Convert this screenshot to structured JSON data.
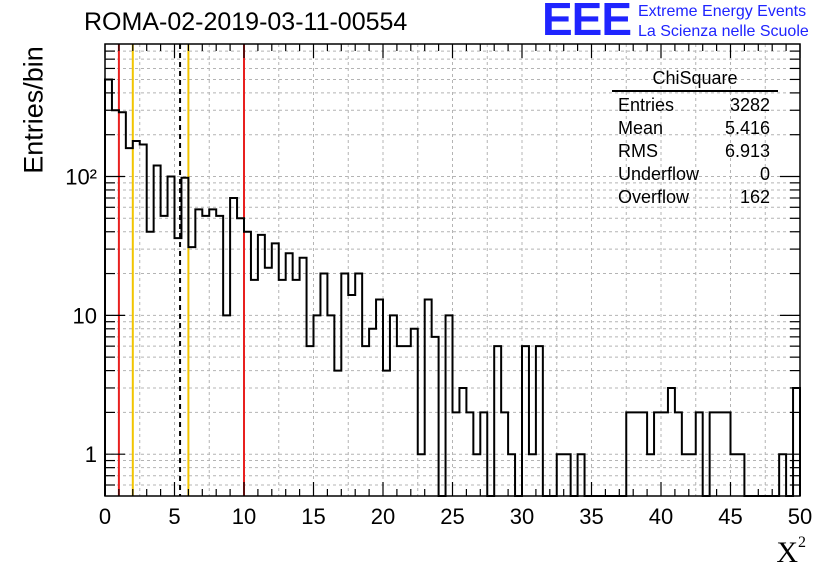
{
  "header": {
    "title": "ROMA-02-2019-03-11-00554"
  },
  "logo": {
    "mark": "EEE",
    "line1": "Extreme Energy Events",
    "line2": "La Scienza nelle Scuole",
    "color": "#1f24ff"
  },
  "stats": {
    "title": "ChiSquare",
    "rows": [
      {
        "label": "Entries",
        "value": "3282"
      },
      {
        "label": "Mean",
        "value": "5.416"
      },
      {
        "label": "RMS",
        "value": "6.913"
      },
      {
        "label": "Underflow",
        "value": "0"
      },
      {
        "label": "Overflow",
        "value": "162"
      }
    ]
  },
  "chart_data": {
    "type": "histogram",
    "title": "ROMA-02-2019-03-11-00554",
    "xlabel": "X",
    "xlabel_superscript": "2",
    "ylabel": "Entries/bin",
    "xlim": [
      0,
      50
    ],
    "ylim": [
      0.5,
      900
    ],
    "yscale": "log",
    "grid": true,
    "bin_width": 0.5,
    "bin_start": 0,
    "counts": [
      500,
      300,
      290,
      160,
      180,
      170,
      40,
      120,
      52,
      100,
      36,
      98,
      31,
      58,
      52,
      58,
      52,
      10,
      70,
      50,
      40,
      18,
      38,
      22,
      33,
      18,
      28,
      18,
      26,
      6,
      10,
      20,
      10,
      4,
      20,
      14,
      20,
      6,
      8,
      13,
      4,
      10,
      6,
      6,
      8,
      1,
      13,
      7,
      0.5,
      10,
      2,
      3,
      2,
      1,
      2,
      0.5,
      6,
      2,
      1,
      0.5,
      6,
      1,
      6,
      0.5,
      0.5,
      1,
      1,
      0.5,
      1,
      0.5,
      0.5,
      0.5,
      0.5,
      0.5,
      0.5,
      2,
      2,
      2,
      1,
      2,
      2,
      3,
      2,
      1,
      1,
      2,
      0.5,
      2,
      2,
      2,
      1,
      1,
      0.5,
      0.5,
      0.5,
      0.5,
      0.5,
      1,
      0.5,
      3
    ],
    "x_ticks": [
      "0",
      "5",
      "10",
      "15",
      "20",
      "25",
      "30",
      "35",
      "40",
      "45",
      "50"
    ],
    "y_tick_labels": [
      "1",
      "10",
      "10²"
    ],
    "vertical_lines": [
      {
        "x": 1.0,
        "color": "#e8201f",
        "style": "solid"
      },
      {
        "x": 2.0,
        "color": "#f2c500",
        "style": "solid"
      },
      {
        "x": 5.4,
        "color": "#000000",
        "style": "dashed"
      },
      {
        "x": 6.0,
        "color": "#f2c500",
        "style": "solid"
      },
      {
        "x": 10.0,
        "color": "#e8201f",
        "style": "solid"
      }
    ],
    "line_color": "#000000"
  }
}
